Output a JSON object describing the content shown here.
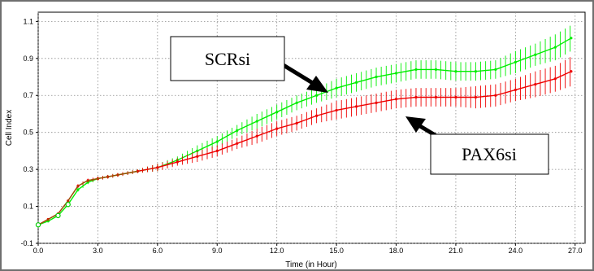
{
  "chart_data": {
    "type": "line",
    "xlabel": "Time (in Hour)",
    "ylabel": "Cell Index",
    "xlim": [
      0,
      27.5
    ],
    "ylim": [
      -0.1,
      1.15
    ],
    "x_ticks": [
      0.0,
      3.0,
      6.0,
      9.0,
      12.0,
      15.0,
      18.0,
      21.0,
      24.0,
      27.0
    ],
    "x_tick_labels": [
      "0.0",
      "3.0",
      "6.0",
      "9.0",
      "12.0",
      "15.0",
      "18.0",
      "21.0",
      "24.0",
      "27.0"
    ],
    "y_ticks": [
      -0.1,
      0.1,
      0.3,
      0.5,
      0.7,
      0.9,
      1.1
    ],
    "y_tick_labels": [
      "-0.1",
      "0.1",
      "0.3",
      "0.5",
      "0.7",
      "0.9",
      "1.1"
    ],
    "grid": true,
    "series": [
      {
        "name": "SCRsi",
        "color": "#00ee00",
        "x": [
          0,
          0.5,
          1,
          1.5,
          2,
          2.5,
          3,
          3.5,
          4,
          5,
          6,
          7,
          8,
          9,
          10,
          11,
          12,
          13,
          14,
          15,
          16,
          17,
          18,
          19,
          20,
          21,
          22,
          23,
          24,
          25,
          26,
          26.8
        ],
        "y": [
          0.0,
          0.02,
          0.05,
          0.11,
          0.19,
          0.23,
          0.25,
          0.26,
          0.27,
          0.29,
          0.31,
          0.35,
          0.4,
          0.45,
          0.51,
          0.56,
          0.61,
          0.66,
          0.7,
          0.74,
          0.77,
          0.8,
          0.82,
          0.84,
          0.84,
          0.83,
          0.83,
          0.84,
          0.88,
          0.92,
          0.96,
          1.01
        ],
        "error": [
          0,
          0,
          0,
          0,
          0.01,
          0.01,
          0.01,
          0.01,
          0.01,
          0.01,
          0.02,
          0.02,
          0.03,
          0.03,
          0.03,
          0.04,
          0.04,
          0.04,
          0.04,
          0.05,
          0.05,
          0.05,
          0.05,
          0.05,
          0.05,
          0.05,
          0.05,
          0.05,
          0.06,
          0.06,
          0.07,
          0.07
        ]
      },
      {
        "name": "PAX6si",
        "color": "#ee0000",
        "x": [
          0,
          0.5,
          1,
          1.5,
          2,
          2.5,
          3,
          3.5,
          4,
          5,
          6,
          7,
          8,
          9,
          10,
          11,
          12,
          13,
          14,
          15,
          16,
          17,
          18,
          19,
          20,
          21,
          22,
          23,
          24,
          25,
          26,
          26.8
        ],
        "y": [
          0.0,
          0.03,
          0.06,
          0.13,
          0.21,
          0.24,
          0.25,
          0.26,
          0.27,
          0.29,
          0.31,
          0.34,
          0.37,
          0.4,
          0.44,
          0.48,
          0.52,
          0.55,
          0.59,
          0.62,
          0.64,
          0.66,
          0.68,
          0.69,
          0.69,
          0.69,
          0.69,
          0.7,
          0.73,
          0.76,
          0.79,
          0.83
        ],
        "error": [
          0,
          0,
          0,
          0,
          0.01,
          0.01,
          0.01,
          0.01,
          0.01,
          0.01,
          0.02,
          0.02,
          0.03,
          0.03,
          0.03,
          0.04,
          0.04,
          0.04,
          0.04,
          0.05,
          0.05,
          0.05,
          0.05,
          0.05,
          0.05,
          0.05,
          0.06,
          0.06,
          0.06,
          0.07,
          0.07,
          0.08
        ]
      }
    ],
    "annotations": [
      {
        "text": "SCRsi",
        "target_series": "SCRsi",
        "target_x": 14.2
      },
      {
        "text": "PAX6si",
        "target_series": "PAX6si",
        "target_x": 18.3
      }
    ]
  }
}
